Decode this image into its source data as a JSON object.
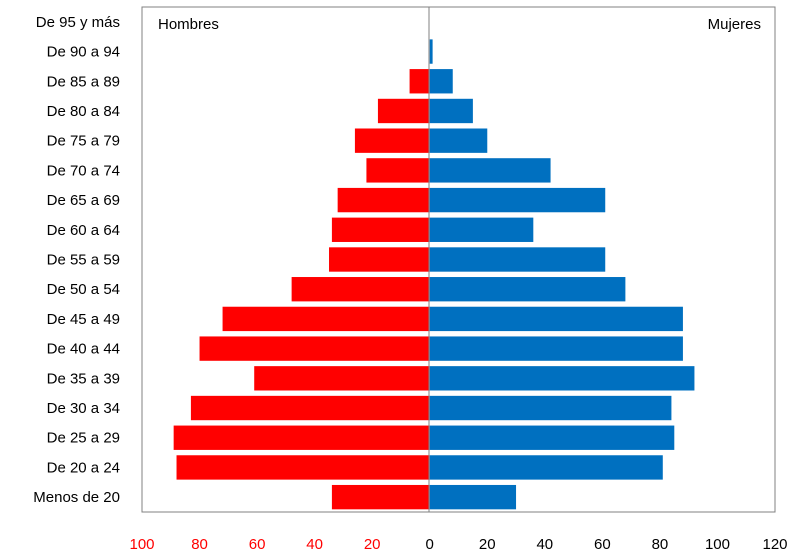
{
  "chart_data": {
    "type": "bar",
    "orientation": "horizontal",
    "layout": "population-pyramid",
    "categories": [
      "Menos de 20",
      "De 20 a 24",
      "De 25 a 29",
      "De 30 a 34",
      "De 35 a 39",
      "De 40 a 44",
      "De 45 a 49",
      "De 50 a 54",
      "De 55 a 59",
      "De 60 a 64",
      "De 65 a 69",
      "De 70 a 74",
      "De 75 a 79",
      "De 80 a 84",
      "De 85 a 89",
      "De 90 a 94",
      "De 95 y más"
    ],
    "series": [
      {
        "name": "Hombres",
        "color": "#ff0000",
        "side": "left",
        "values": [
          34,
          88,
          89,
          83,
          61,
          80,
          72,
          48,
          35,
          34,
          32,
          22,
          26,
          18,
          7,
          0,
          0
        ]
      },
      {
        "name": "Mujeres",
        "color": "#0070c0",
        "side": "right",
        "values": [
          30,
          81,
          85,
          84,
          92,
          88,
          88,
          68,
          61,
          36,
          61,
          42,
          20,
          15,
          8,
          1,
          0
        ]
      }
    ],
    "xlim": [
      -100,
      120
    ],
    "xticks": [
      -100,
      -80,
      -60,
      -40,
      -20,
      0,
      20,
      40,
      60,
      80,
      100,
      120
    ],
    "xtick_labels": [
      "100",
      "80",
      "60",
      "40",
      "20",
      "0",
      "20",
      "40",
      "60",
      "80",
      "100",
      "120"
    ],
    "left_tick_color": "#ff0000",
    "right_tick_color": "#000000",
    "grid": false,
    "title": "",
    "xlabel": "",
    "ylabel": ""
  }
}
